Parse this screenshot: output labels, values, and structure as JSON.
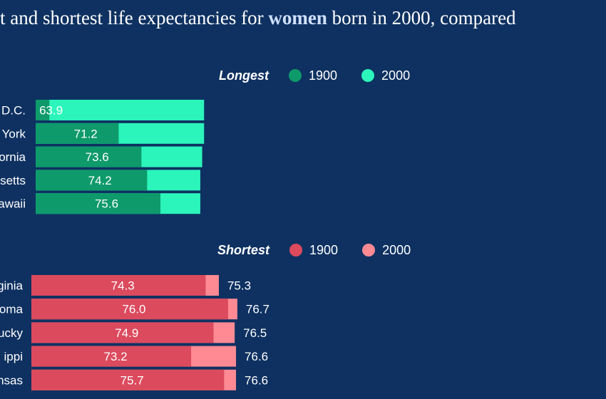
{
  "title": {
    "before": "t and shortest life expectancies for ",
    "highlight": "women",
    "after": " born in 2000, compared"
  },
  "colors": {
    "background": "#0e3161",
    "longest_1900": "#0e9a6a",
    "longest_2000": "#2bf5bb",
    "shortest_1900": "#dc4a5e",
    "shortest_2000": "#ff8a94"
  },
  "chart_data": [
    {
      "type": "bar",
      "orientation": "horizontal",
      "legend_title": "Longest",
      "series_names": [
        "1900",
        "2000"
      ],
      "categories": [
        "D.C.",
        "York",
        "ornia",
        "setts",
        "awaii"
      ],
      "series": [
        {
          "name": "1900",
          "values": [
            63.9,
            71.2,
            73.6,
            74.2,
            75.6
          ]
        },
        {
          "name": "2000",
          "values": [
            80.2,
            80.2,
            80.0,
            79.8,
            79.8
          ]
        }
      ]
    },
    {
      "type": "bar",
      "orientation": "horizontal",
      "legend_title": "Shortest",
      "series_names": [
        "1900",
        "2000"
      ],
      "categories": [
        "ginia",
        "oma",
        "ucky",
        "ippi",
        "nsas"
      ],
      "series": [
        {
          "name": "1900",
          "values": [
            74.3,
            76.0,
            74.9,
            73.2,
            75.7
          ]
        },
        {
          "name": "2000",
          "values": [
            75.3,
            76.7,
            76.5,
            76.6,
            76.6
          ]
        }
      ]
    }
  ]
}
